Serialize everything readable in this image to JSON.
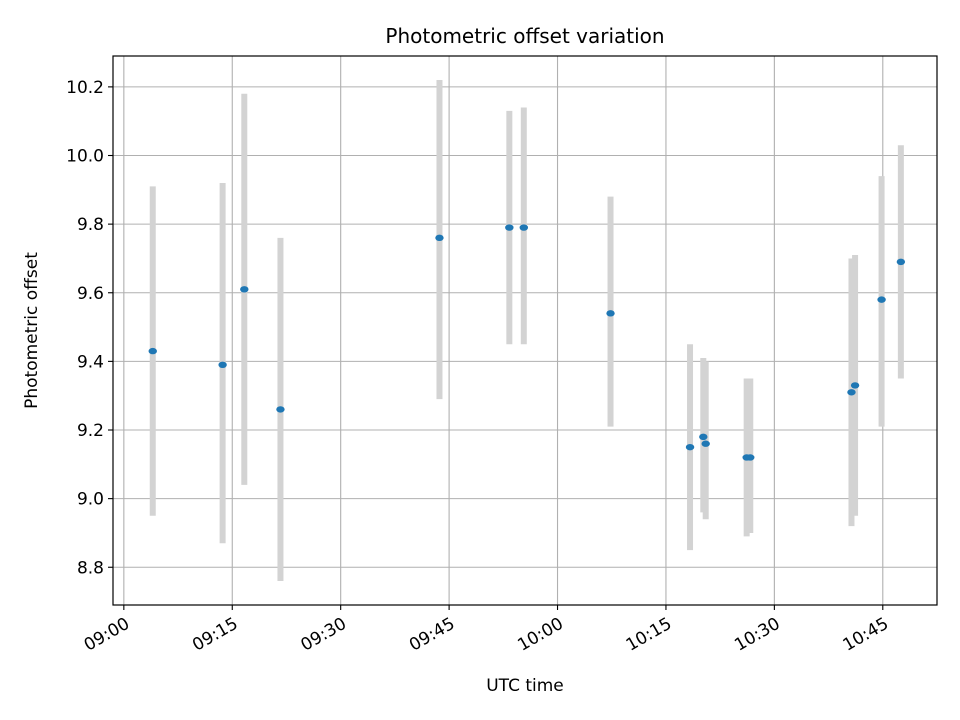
{
  "chart_data": {
    "type": "scatter",
    "title": "Photometric offset variation",
    "xlabel": "UTC time",
    "ylabel": "Photometric offset",
    "x_axis_type": "time",
    "x_tick_labels": [
      "09:00",
      "09:15",
      "09:30",
      "09:45",
      "10:00",
      "10:15",
      "10:30",
      "10:45"
    ],
    "y_ticks": [
      8.8,
      9.0,
      9.2,
      9.4,
      9.6,
      9.8,
      10.0,
      10.2
    ],
    "y_tick_labels": [
      "8.8",
      "9.0",
      "9.2",
      "9.4",
      "9.6",
      "9.8",
      "10.0",
      "10.2"
    ],
    "xlim": [
      "08:58:30",
      "10:52:30"
    ],
    "ylim": [
      8.69,
      10.29
    ],
    "grid": true,
    "points": [
      {
        "time": "09:04:00",
        "y": 9.43,
        "err_low": 8.95,
        "err_high": 9.91
      },
      {
        "time": "09:13:40",
        "y": 9.39,
        "err_low": 8.87,
        "err_high": 9.92
      },
      {
        "time": "09:16:40",
        "y": 9.61,
        "err_low": 9.04,
        "err_high": 10.18
      },
      {
        "time": "09:21:40",
        "y": 9.26,
        "err_low": 8.76,
        "err_high": 9.76
      },
      {
        "time": "09:43:40",
        "y": 9.76,
        "err_low": 9.29,
        "err_high": 10.22
      },
      {
        "time": "09:53:20",
        "y": 9.79,
        "err_low": 9.45,
        "err_high": 10.13
      },
      {
        "time": "09:55:20",
        "y": 9.79,
        "err_low": 9.45,
        "err_high": 10.14
      },
      {
        "time": "10:07:20",
        "y": 9.54,
        "err_low": 9.21,
        "err_high": 9.88
      },
      {
        "time": "10:18:20",
        "y": 9.15,
        "err_low": 8.85,
        "err_high": 9.45
      },
      {
        "time": "10:20:10",
        "y": 9.18,
        "err_low": 8.96,
        "err_high": 9.41
      },
      {
        "time": "10:20:30",
        "y": 9.16,
        "err_low": 8.94,
        "err_high": 9.4
      },
      {
        "time": "10:26:10",
        "y": 9.12,
        "err_low": 8.89,
        "err_high": 9.35
      },
      {
        "time": "10:26:40",
        "y": 9.12,
        "err_low": 8.9,
        "err_high": 9.35
      },
      {
        "time": "10:40:40",
        "y": 9.31,
        "err_low": 8.92,
        "err_high": 9.7
      },
      {
        "time": "10:41:10",
        "y": 9.33,
        "err_low": 8.95,
        "err_high": 9.71
      },
      {
        "time": "10:44:50",
        "y": 9.58,
        "err_low": 9.21,
        "err_high": 9.94
      },
      {
        "time": "10:47:30",
        "y": 9.69,
        "err_low": 9.35,
        "err_high": 10.03
      }
    ],
    "colors": {
      "point": "#1f77b4",
      "errorbar": "#d3d3d3",
      "grid": "#b0b0b0",
      "axes": "#000000"
    }
  }
}
